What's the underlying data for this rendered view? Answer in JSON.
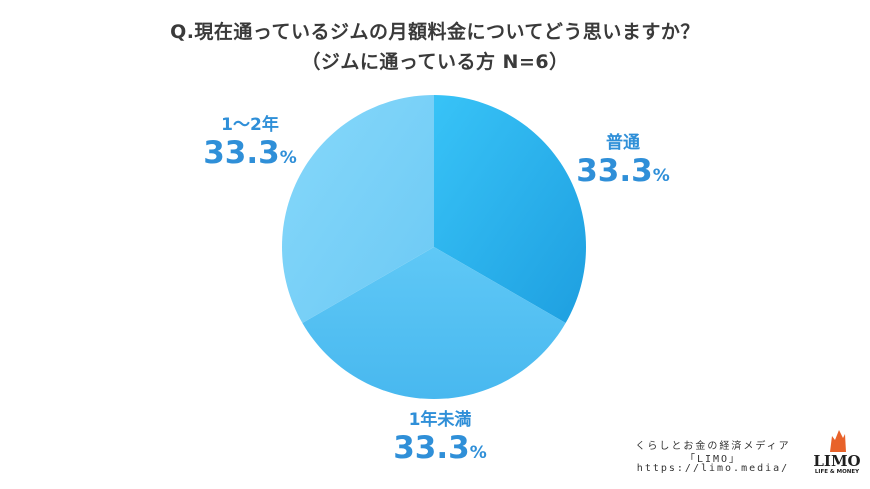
{
  "chart_data": {
    "type": "pie",
    "title": "Q.現在通っているジムの月額料金についてどう思いますか？",
    "subtitle": "（ジムに通っている方 N=6）",
    "slices": [
      {
        "label": "普通",
        "value": 33.3,
        "display": "33.3",
        "unit": "%",
        "color": "#2eb5ee"
      },
      {
        "label": "1年未満",
        "value": 33.3,
        "display": "33.3",
        "unit": "%",
        "color": "#5cc4f3"
      },
      {
        "label": "1〜2年",
        "value": 33.3,
        "display": "33.3",
        "unit": "%",
        "color": "#7cd2f8"
      }
    ]
  },
  "credit": {
    "line1": "くらしとお金の経済メディア",
    "line2": "「LIMO」",
    "line3": "https://limo.media/"
  },
  "logo": {
    "text": "LIMO",
    "tagline": "LIFE & MONEY",
    "color": "#e8622a"
  }
}
